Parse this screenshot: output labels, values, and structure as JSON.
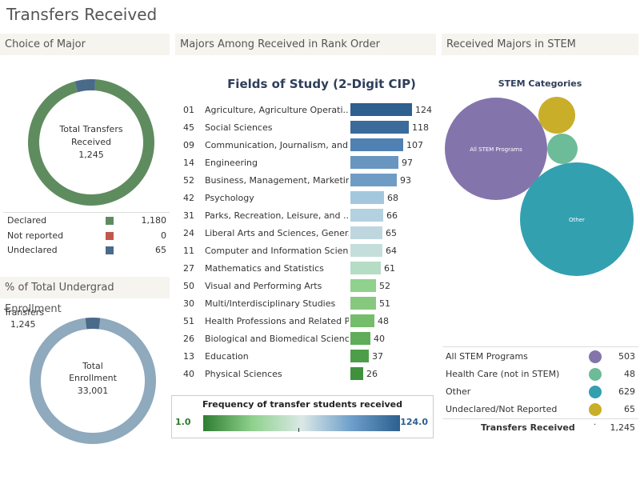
{
  "page_title": "Transfers Received",
  "panels": {
    "choice": "Choice of Major",
    "rank": "Majors Among Received in Rank Order",
    "stem": "Received Majors in STEM",
    "pct": "% of Total Undergrad Enrollment"
  },
  "choice_donut": {
    "center_line1": "Total Transfers",
    "center_line2": "Received",
    "center_value": "1,245",
    "segments": [
      {
        "label": "Declared",
        "value": 1180,
        "display": "1,180",
        "color": "#5f8c5f"
      },
      {
        "label": "Not reported",
        "value": 0,
        "display": "0",
        "color": "#c0584b"
      },
      {
        "label": "Undeclared",
        "value": 65,
        "display": "65",
        "color": "#4a6a8a"
      }
    ]
  },
  "enrollment_donut": {
    "transfers_label": "Transfers",
    "transfers_value": "1,245",
    "center_line1": "Total",
    "center_line2": "Enrollment",
    "center_value": "33,001",
    "total": 33001,
    "transfers": 1245,
    "ring_color": "#8fa9bd",
    "slice_color": "#4a6a8a"
  },
  "chart_data": {
    "type": "bar",
    "title": "Fields of Study (2-Digit CIP)",
    "orientation": "horizontal",
    "codes": [
      "01",
      "45",
      "09",
      "14",
      "52",
      "42",
      "31",
      "24",
      "11",
      "27",
      "50",
      "30",
      "51",
      "26",
      "13",
      "40"
    ],
    "categories": [
      "Agriculture, Agriculture Operati..",
      "Social Sciences",
      "Communication, Journalism, and..",
      "Engineering",
      "Business, Management, Marketin..",
      "Psychology",
      "Parks, Recreation, Leisure, and ..",
      "Liberal Arts and Sciences, Gener..",
      "Computer and Information Scien..",
      "Mathematics and Statistics",
      "Visual and Performing Arts",
      "Multi/Interdisciplinary Studies",
      "Health Professions and Related P..",
      "Biological and Biomedical Scienc..",
      "Education",
      "Physical Sciences"
    ],
    "values": [
      124,
      118,
      107,
      97,
      93,
      68,
      66,
      65,
      64,
      61,
      52,
      51,
      48,
      40,
      37,
      26
    ],
    "colors": [
      "#2d5f8f",
      "#3a6b9a",
      "#4f81b3",
      "#6896c1",
      "#6f9cc5",
      "#a3c8de",
      "#b3d1e0",
      "#bed7df",
      "#c4dedb",
      "#b5dcc4",
      "#8fd18d",
      "#86c97e",
      "#74bd6a",
      "#5fad58",
      "#4d9e48",
      "#3f913c"
    ],
    "scale_min": 1.0,
    "scale_max": 124.0,
    "scale_title": "Frequency of transfer students received",
    "scale_min_label": "1.0",
    "scale_max_label": "124.0"
  },
  "stem": {
    "title": "STEM Categories",
    "bubbles": [
      {
        "label": "All STEM Programs",
        "value": 503,
        "color": "#8474ac"
      },
      {
        "label": "Health Care (not in STEM)",
        "value": 48,
        "color": "#6cbb99"
      },
      {
        "label": "Other",
        "value": 629,
        "color": "#33a0b0"
      },
      {
        "label": "Undeclared/Not Reported",
        "value": 65,
        "color": "#c9ae2a"
      }
    ],
    "rows": [
      {
        "label": "All STEM Programs",
        "value": "503",
        "color": "#8474ac"
      },
      {
        "label": "Health Care (not in STEM)",
        "value": "48",
        "color": "#6cbb99"
      },
      {
        "label": "Other",
        "value": "629",
        "color": "#33a0b0"
      },
      {
        "label": "Undeclared/Not Reported",
        "value": "65",
        "color": "#c9ae2a"
      }
    ],
    "total_label": "Transfers Received",
    "total_value": "1,245"
  }
}
